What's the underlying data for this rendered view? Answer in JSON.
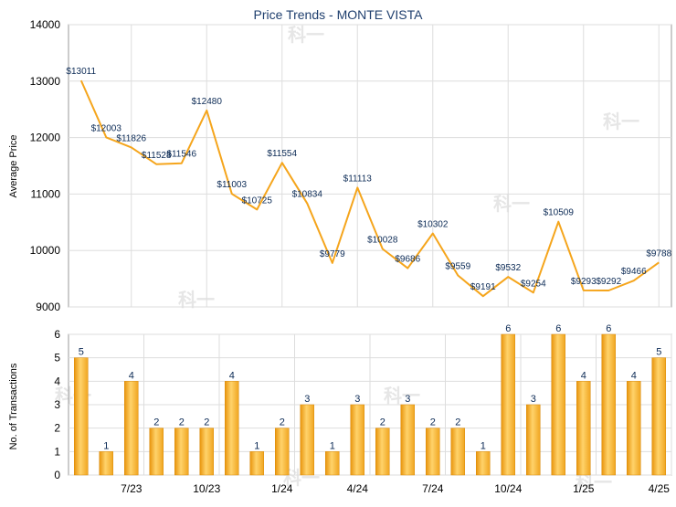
{
  "chart_data": [
    {
      "type": "line",
      "title": "Price Trends - MONTE VISTA",
      "ylabel": "Average Price",
      "ylim": [
        9000,
        14000
      ],
      "yticks": [
        "9000",
        "10000",
        "11000",
        "12000",
        "13000",
        "14000"
      ],
      "color": "#f5a51c",
      "grid": true,
      "series": [
        {
          "values": [
            13011,
            12003,
            11826,
            11528,
            11546,
            12480,
            11003,
            10725,
            11554,
            10834,
            9779,
            11113,
            10028,
            9686,
            10302,
            9559,
            9191,
            9532,
            9254,
            10509,
            9293,
            9292,
            9466,
            9788
          ],
          "labels": [
            "$13011",
            "$12003",
            "$11826",
            "$11528",
            "$11546",
            "$12480",
            "$11003",
            "$10725",
            "$11554",
            "$10834",
            "$9779",
            "$11113",
            "$10028",
            "$9686",
            "$10302",
            "$9559",
            "$9191",
            "$9532",
            "$9254",
            "$10509",
            "$9293",
            "$9292",
            "$9466",
            "$9788"
          ]
        }
      ]
    },
    {
      "type": "bar",
      "ylabel": "No. of Transactions",
      "ylim": [
        0,
        6
      ],
      "yticks": [
        "0",
        "1",
        "2",
        "3",
        "4",
        "5",
        "6"
      ],
      "color": "#f5a51c",
      "grid": true,
      "values": [
        5,
        1,
        4,
        2,
        2,
        2,
        4,
        1,
        2,
        3,
        1,
        3,
        2,
        3,
        2,
        2,
        1,
        6,
        3,
        6,
        4,
        6,
        4,
        5
      ],
      "xticks": [
        "7/23",
        "10/23",
        "1/24",
        "4/24",
        "7/24",
        "10/24",
        "1/25",
        "4/25"
      ]
    }
  ],
  "watermark": "科一"
}
